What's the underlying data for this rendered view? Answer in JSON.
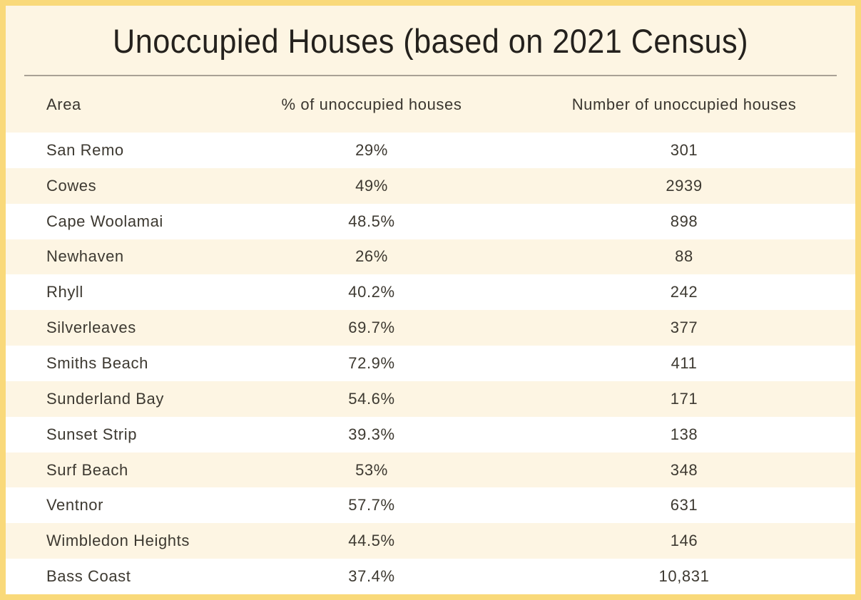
{
  "title": "Unoccupied Houses (based on 2021 Census)",
  "table": {
    "columns": [
      "Area",
      "% of unoccupied houses",
      "Number of unoccupied houses"
    ]
  },
  "chart_data": {
    "type": "table",
    "title": "Unoccupied Houses (based on 2021 Census)",
    "columns": [
      "Area",
      "% of unoccupied houses",
      "Number of unoccupied houses"
    ],
    "rows": [
      [
        "San Remo",
        "29%",
        "301"
      ],
      [
        "Cowes",
        "49%",
        "2939"
      ],
      [
        "Cape Woolamai",
        "48.5%",
        "898"
      ],
      [
        "Newhaven",
        "26%",
        "88"
      ],
      [
        "Rhyll",
        "40.2%",
        "242"
      ],
      [
        "Silverleaves",
        "69.7%",
        "377"
      ],
      [
        "Smiths Beach",
        "72.9%",
        "411"
      ],
      [
        "Sunderland Bay",
        "54.6%",
        "171"
      ],
      [
        "Sunset Strip",
        "39.3%",
        "138"
      ],
      [
        "Surf Beach",
        "53%",
        "348"
      ],
      [
        "Ventnor",
        "57.7%",
        "631"
      ],
      [
        "Wimbledon Heights",
        "44.5%",
        "146"
      ],
      [
        "Bass Coast",
        "37.4%",
        "10,831"
      ]
    ],
    "layout": {
      "row_striping": "alternating white / cream",
      "column_alignment": [
        "left",
        "center",
        "center"
      ],
      "grid": "off"
    }
  },
  "colors": {
    "border": "#f9d97a",
    "background_cream": "#fdf5e3",
    "row_white": "#ffffff",
    "divider": "#a9a195",
    "title_text": "#24211d",
    "body_text": "#3d3931"
  }
}
